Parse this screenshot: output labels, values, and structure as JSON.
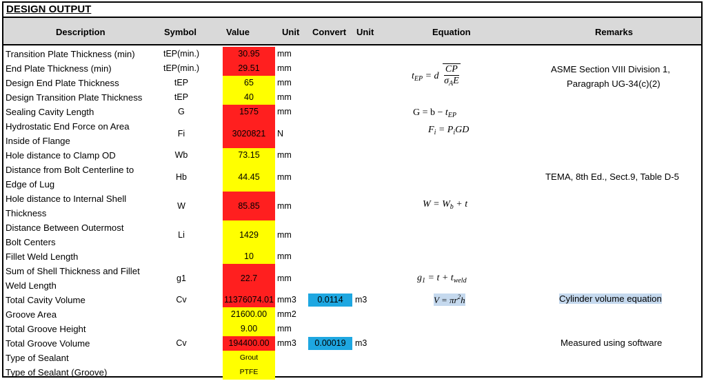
{
  "section_title": "DESIGN OUTPUT",
  "headers": {
    "description": "Description",
    "symbol": "Symbol",
    "value": "Value",
    "unit": "Unit",
    "convert": "Convert",
    "convert_unit": "Unit",
    "equation": "Equation",
    "remarks": "Remarks"
  },
  "rows": [
    {
      "description": [
        "Transition Plate Thickness (min)"
      ],
      "symbol": "tEP(min.)",
      "value": "30.95",
      "value_color": "red",
      "unit": "mm"
    },
    {
      "description": [
        "End Plate Thickness (min)"
      ],
      "symbol": "tEP(min.)",
      "value": "29.51",
      "value_color": "red",
      "unit": "mm"
    },
    {
      "description": [
        "Design End Plate Thickness"
      ],
      "symbol": "tEP",
      "value": "65",
      "value_color": "yellow",
      "unit": "mm"
    },
    {
      "description": [
        "Design Transition Plate Thickness"
      ],
      "symbol": "tEP",
      "value": "40",
      "value_color": "yellow",
      "unit": "mm"
    },
    {
      "description": [
        "Sealing Cavity Length"
      ],
      "symbol": "G",
      "value": "1575",
      "value_color": "red",
      "unit": "mm"
    },
    {
      "description": [
        "Hydrostatic End Force on Area",
        "Inside of Flange"
      ],
      "symbol": "Fi",
      "value": "3020821",
      "value_color": "red",
      "unit": "N"
    },
    {
      "description": [
        "Hole distance to Clamp OD"
      ],
      "symbol": "Wb",
      "value": "73.15",
      "value_color": "yellow",
      "unit": "mm"
    },
    {
      "description": [
        "Distance from Bolt Centerline to",
        "Edge of Lug"
      ],
      "symbol": "Hb",
      "value": "44.45",
      "value_color": "yellow",
      "unit": "mm"
    },
    {
      "description": [
        "Hole distance to Internal Shell",
        "Thickness"
      ],
      "symbol": "W",
      "value": "85.85",
      "value_color": "red",
      "unit": "mm"
    },
    {
      "description": [
        "Distance Between Outermost",
        "Bolt Centers"
      ],
      "symbol": "Li",
      "value": "1429",
      "value_color": "yellow",
      "unit": "mm"
    },
    {
      "description": [
        "Fillet Weld Length"
      ],
      "symbol": "",
      "value": "10",
      "value_color": "yellow",
      "unit": "mm"
    },
    {
      "description": [
        "Sum of Shell Thickness and Fillet",
        "Weld Length"
      ],
      "symbol": "g1",
      "value": "22.7",
      "value_color": "red",
      "unit": "mm"
    },
    {
      "description": [
        "Total Cavity Volume"
      ],
      "symbol": "Cv",
      "value": "11376074.01",
      "value_color": "red",
      "unit": "mm3",
      "convert": "0.0114",
      "convert_unit": "m3"
    },
    {
      "description": [
        "Groove Area"
      ],
      "symbol": "",
      "value": "21600.00",
      "value_color": "yellow",
      "unit": "mm2"
    },
    {
      "description": [
        "Total Groove Height"
      ],
      "symbol": "",
      "value": "9.00",
      "value_color": "yellow",
      "unit": "mm"
    },
    {
      "description": [
        "Total Groove Volume"
      ],
      "symbol": "Cv",
      "value": "194400.00",
      "value_color": "red",
      "unit": "mm3",
      "convert": "0.00019",
      "convert_unit": "m3"
    },
    {
      "description": [
        "Type of Sealant"
      ],
      "symbol": "",
      "value": "Grout",
      "value_color": "yellow",
      "unit": ""
    },
    {
      "description": [
        "Type of Sealant (Groove)"
      ],
      "symbol": "",
      "value": "PTFE",
      "value_color": "yellow",
      "unit": ""
    }
  ],
  "equations": {
    "tep": {
      "lhs": "t",
      "lhs_sub": "EP",
      "eq": " = d",
      "num": "CP",
      "den": "σ",
      "den_sub": "A",
      "den_tail": "E"
    },
    "g": {
      "text": "G = b − ",
      "t": "t",
      "sub": "EP"
    },
    "fi": {
      "f": "F",
      "f_sub": "i",
      "eq": " = P",
      "p_sub": "i",
      "tail": "GD"
    },
    "w": {
      "w": "W",
      "eq": " = W",
      "w_sub": "b",
      "tail": " + t"
    },
    "g1": {
      "g": "g",
      "g_sub": "1",
      "eq": " = t + t",
      "t_sub": "weld"
    },
    "v": {
      "text": "V = πr",
      "sup": "2",
      "tail": "h"
    }
  },
  "remarks": {
    "asme_line1": "ASME Section VIII Division 1,",
    "asme_line2": "Paragraph UG-34(c)(2)",
    "tema": "TEMA, 8th Ed., Sect.9, Table D-5",
    "cylinder": "Cylinder volume equation",
    "software": "Measured using software"
  }
}
